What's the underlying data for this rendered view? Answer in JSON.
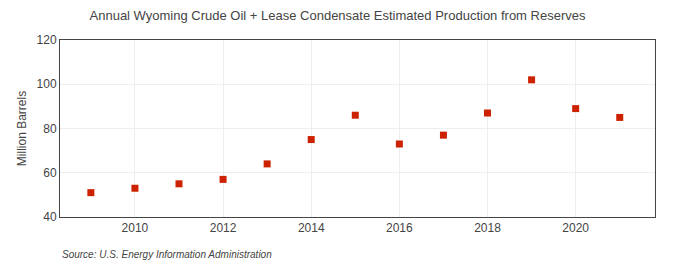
{
  "chart_data": {
    "type": "scatter",
    "title": "Annual Wyoming Crude Oil + Lease Condensate Estimated Production from Reserves",
    "ylabel": "Million Barrels",
    "annotations": [
      "Source: U.S. Energy Information Administration"
    ],
    "x": [
      2009,
      2010,
      2011,
      2012,
      2013,
      2014,
      2015,
      2016,
      2017,
      2018,
      2019,
      2020,
      2021
    ],
    "values": [
      51,
      53,
      55,
      57,
      64,
      75,
      86,
      73,
      77,
      87,
      102,
      89,
      85
    ],
    "color": "#cc2200",
    "marker": "square",
    "xlim": [
      2008.3,
      2021.8
    ],
    "xticks": [
      2010,
      2012,
      2014,
      2016,
      2018,
      2020
    ],
    "ylim": [
      40,
      120
    ],
    "yticks": [
      40,
      60,
      80,
      100,
      120
    ],
    "grid": true
  }
}
